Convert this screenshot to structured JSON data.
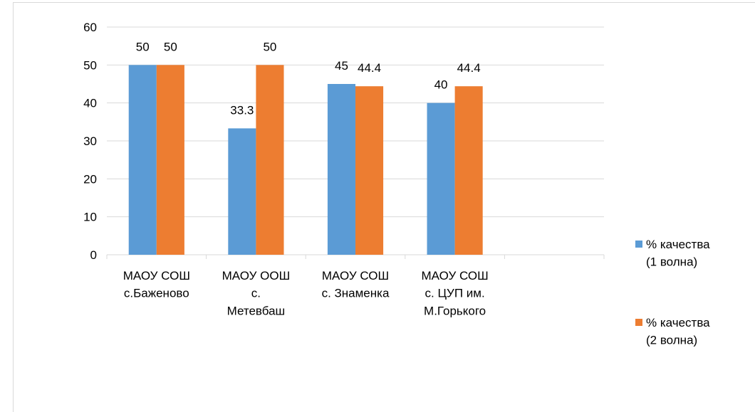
{
  "chart_data": {
    "type": "bar",
    "categories": [
      "МАОУ СОШ\nс.Баженово",
      "МАОУ ООШ\nс.\nМетевбаш",
      "МАОУ СОШ\nс. Знаменка",
      "МАОУ СОШ\nс. ЦУП им.\nМ.Горького",
      null
    ],
    "series": [
      {
        "name": "% качества\n(1 волна)",
        "color": "#5b9bd5",
        "values": [
          50,
          33.3,
          45,
          40,
          null
        ]
      },
      {
        "name": "% качества\n(2 волна)",
        "color": "#ed7d31",
        "values": [
          50,
          50,
          44.4,
          44.4,
          null
        ]
      }
    ],
    "ylim": [
      0,
      60
    ],
    "yticks": [
      0,
      10,
      20,
      30,
      40,
      50,
      60
    ],
    "grid": true,
    "legend": "right"
  }
}
